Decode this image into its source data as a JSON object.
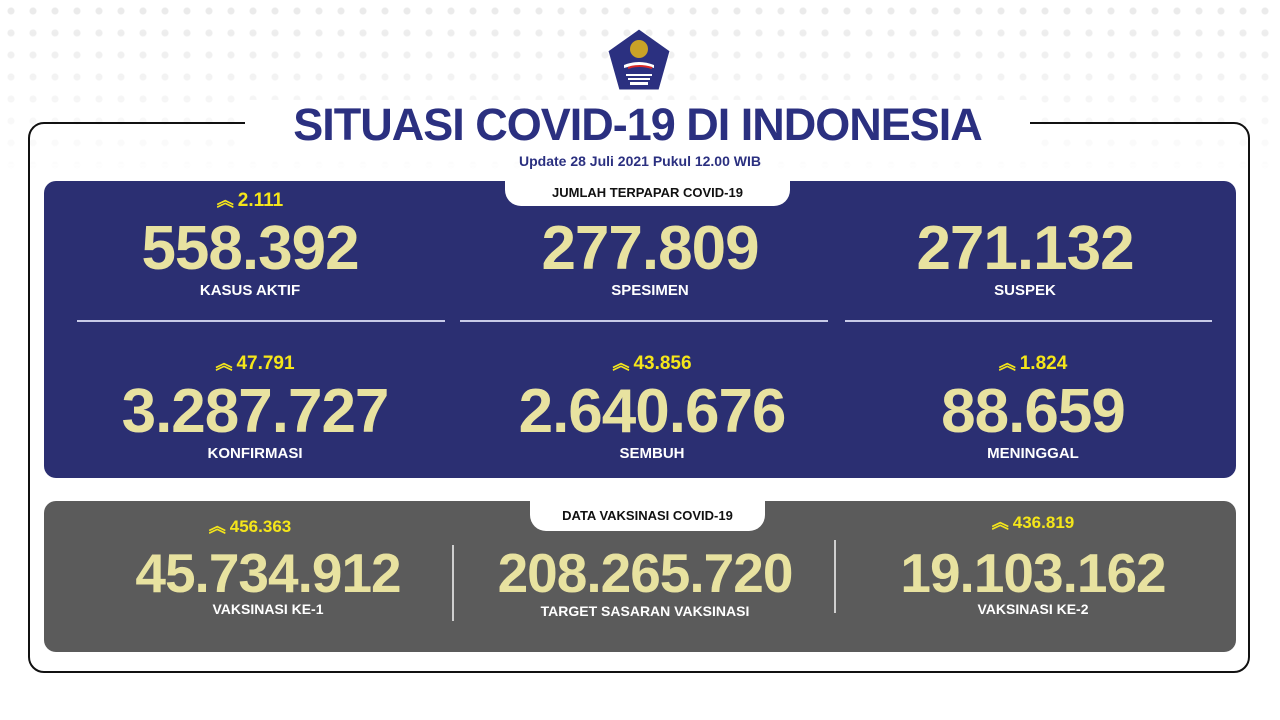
{
  "header": {
    "logo_text": "SATUAN TUGAS PENANGANAN COVID-19",
    "title": "SITUASI COVID-19 DI INDONESIA",
    "update": "Update 28 Juli  2021 Pukul 12.00 WIB"
  },
  "exposure": {
    "tab": "JUMLAH TERPAPAR COVID-19",
    "stats": [
      {
        "change": "2.111",
        "value": "558.392",
        "label": "KASUS AKTIF"
      },
      {
        "change": "",
        "value": "277.809",
        "label": "SPESIMEN"
      },
      {
        "change": "",
        "value": "271.132",
        "label": "SUSPEK"
      },
      {
        "change": "47.791",
        "value": "3.287.727",
        "label": "KONFIRMASI"
      },
      {
        "change": "43.856",
        "value": "2.640.676",
        "label": "SEMBUH"
      },
      {
        "change": "1.824",
        "value": "88.659",
        "label": "MENINGGAL"
      }
    ]
  },
  "vaccination": {
    "tab": "DATA VAKSINASI COVID-19",
    "stats": [
      {
        "change": "456.363",
        "value": "45.734.912",
        "label": "VAKSINASI KE-1"
      },
      {
        "change": "",
        "value": "208.265.720",
        "label": "TARGET SASARAN VAKSINASI"
      },
      {
        "change": "436.819",
        "value": "19.103.162",
        "label": "VAKSINASI KE-2"
      }
    ]
  },
  "icons": {
    "increase": "double-chevron-up-icon"
  },
  "colors": {
    "navy": "#2b2f72",
    "title": "#2b3080",
    "number": "#e8e2a0",
    "change": "#f5e61a",
    "gray": "#5b5b5b"
  }
}
